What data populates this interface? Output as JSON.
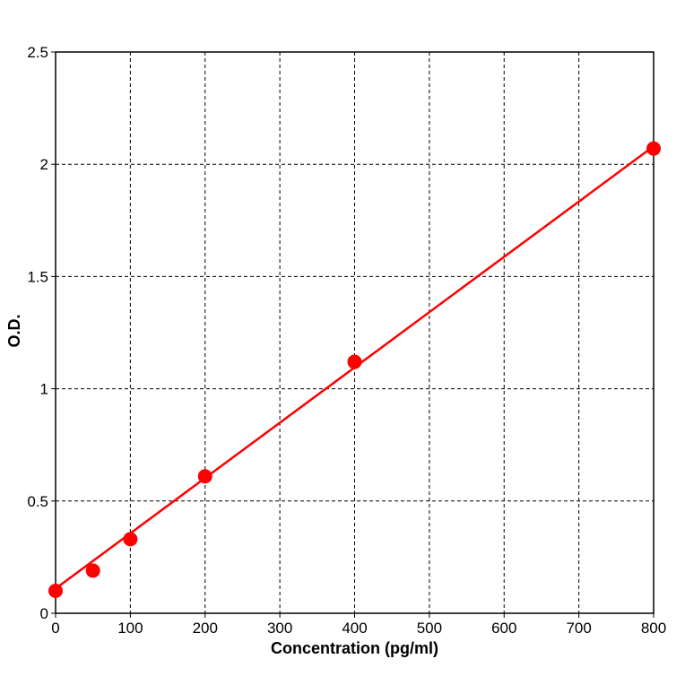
{
  "chart_data": {
    "type": "line",
    "title": "",
    "xlabel": "Concentration (pg/ml)",
    "ylabel": "O.D.",
    "xlim": [
      0,
      800
    ],
    "ylim": [
      0,
      2.5
    ],
    "x_ticks": [
      0,
      100,
      200,
      300,
      400,
      500,
      600,
      700,
      800
    ],
    "y_ticks": [
      0,
      0.5,
      1,
      1.5,
      2,
      2.5
    ],
    "x_tick_labels": [
      "0",
      "100",
      "200",
      "300",
      "400",
      "500",
      "600",
      "700",
      "800"
    ],
    "y_tick_labels": [
      "0",
      "0.5",
      "1",
      "1.5",
      "2",
      "2.5"
    ],
    "grid": true,
    "line_color": "#ff0000",
    "marker_color": "#ff0000",
    "series": [
      {
        "x": [
          0,
          50,
          100,
          200,
          400,
          800
        ],
        "y": [
          0.1,
          0.19,
          0.33,
          0.61,
          1.12,
          2.07
        ]
      }
    ],
    "fit_line": {
      "x": [
        0,
        800
      ],
      "y": [
        0.11,
        2.08
      ]
    }
  }
}
